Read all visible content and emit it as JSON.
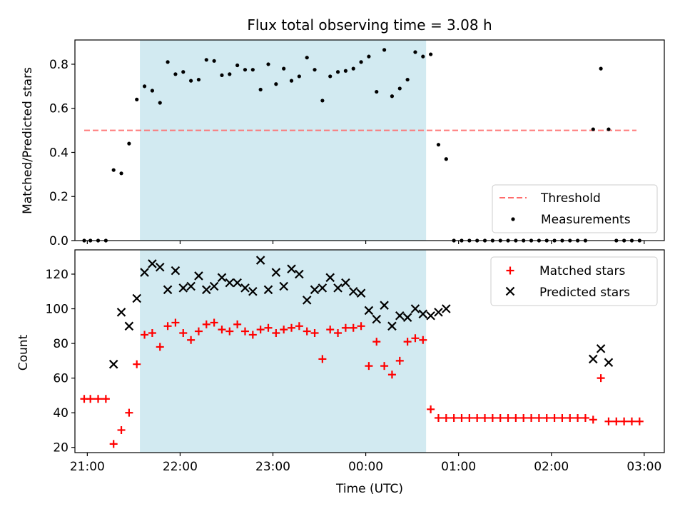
{
  "chart_data": [
    {
      "type": "scatter",
      "title": "Flux total observing time = 3.08 h",
      "xlabel": "",
      "ylabel": "Matched/Predicted stars",
      "xlim": [
        "20:52",
        "03:13"
      ],
      "ylim": [
        0,
        0.91
      ],
      "yticks": [
        0.0,
        0.2,
        0.4,
        0.6,
        0.8
      ],
      "shaded_interval": [
        "21:34",
        "00:39"
      ],
      "shaded_color": "#add8e6",
      "legend_position": "lower right",
      "series": [
        {
          "name": "Threshold",
          "style": "dashed-line",
          "color": "#ff6b6b",
          "x": [
            "20:58",
            "02:55"
          ],
          "y": [
            0.5,
            0.5
          ]
        },
        {
          "name": "Measurements",
          "style": "dot",
          "color": "#000000",
          "x": [
            "20:58",
            "21:02",
            "21:07",
            "21:12",
            "21:17",
            "21:22",
            "21:27",
            "21:32",
            "21:37",
            "21:42",
            "21:47",
            "21:52",
            "21:57",
            "22:02",
            "22:07",
            "22:12",
            "22:17",
            "22:22",
            "22:27",
            "22:32",
            "22:37",
            "22:42",
            "22:47",
            "22:52",
            "22:57",
            "23:02",
            "23:07",
            "23:12",
            "23:17",
            "23:22",
            "23:27",
            "23:32",
            "23:37",
            "23:42",
            "23:47",
            "23:52",
            "23:57",
            "00:02",
            "00:07",
            "00:12",
            "00:17",
            "00:22",
            "00:27",
            "00:32",
            "00:37",
            "00:42",
            "00:47",
            "00:52",
            "00:57",
            "01:02",
            "01:07",
            "01:12",
            "01:17",
            "01:22",
            "01:27",
            "01:32",
            "01:37",
            "01:42",
            "01:47",
            "01:52",
            "01:57",
            "02:02",
            "02:07",
            "02:12",
            "02:17",
            "02:22",
            "02:27",
            "02:32",
            "02:37",
            "02:42",
            "02:47",
            "02:52",
            "02:57"
          ],
          "y": [
            0.0,
            0.0,
            0.0,
            0.0,
            0.32,
            0.305,
            0.44,
            0.64,
            0.7,
            0.68,
            0.625,
            0.81,
            0.755,
            0.765,
            0.725,
            0.73,
            0.82,
            0.815,
            0.75,
            0.755,
            0.795,
            0.775,
            0.775,
            0.685,
            0.8,
            0.71,
            0.78,
            0.725,
            0.745,
            0.83,
            0.775,
            0.635,
            0.745,
            0.765,
            0.77,
            0.78,
            0.81,
            0.835,
            0.675,
            0.865,
            0.655,
            0.69,
            0.73,
            0.855,
            0.835,
            0.845,
            0.435,
            0.37,
            0.0,
            0.0,
            0.0,
            0.0,
            0.0,
            0.0,
            0.0,
            0.0,
            0.0,
            0.0,
            0.0,
            0.0,
            0.0,
            0.0,
            0.0,
            0.0,
            0.0,
            0.0,
            0.505,
            0.78,
            0.505,
            0.0,
            0.0,
            0.0,
            0.0
          ]
        }
      ]
    },
    {
      "type": "scatter",
      "title": "",
      "xlabel": "Time (UTC)",
      "ylabel": "Count",
      "xlim": [
        "20:52",
        "03:13"
      ],
      "ylim": [
        17,
        134
      ],
      "yticks": [
        20,
        40,
        60,
        80,
        100,
        120
      ],
      "xticks": [
        "21:00",
        "22:00",
        "23:00",
        "00:00",
        "01:00",
        "02:00",
        "03:00"
      ],
      "shaded_interval": [
        "21:34",
        "00:39"
      ],
      "shaded_color": "#add8e6",
      "legend_position": "upper right",
      "series": [
        {
          "name": "Matched stars",
          "marker": "plus",
          "color": "#ff0000",
          "x": [
            "20:58",
            "21:02",
            "21:07",
            "21:12",
            "21:17",
            "21:22",
            "21:27",
            "21:32",
            "21:37",
            "21:42",
            "21:47",
            "21:52",
            "21:57",
            "22:02",
            "22:07",
            "22:12",
            "22:17",
            "22:22",
            "22:27",
            "22:32",
            "22:37",
            "22:42",
            "22:47",
            "22:52",
            "22:57",
            "23:02",
            "23:07",
            "23:12",
            "23:17",
            "23:22",
            "23:27",
            "23:32",
            "23:37",
            "23:42",
            "23:47",
            "23:52",
            "23:57",
            "00:02",
            "00:07",
            "00:12",
            "00:17",
            "00:22",
            "00:27",
            "00:32",
            "00:37",
            "00:42",
            "00:47",
            "00:52",
            "00:57",
            "01:02",
            "01:07",
            "01:12",
            "01:17",
            "01:22",
            "01:27",
            "01:32",
            "01:37",
            "01:42",
            "01:47",
            "01:52",
            "01:57",
            "02:02",
            "02:07",
            "02:12",
            "02:17",
            "02:22",
            "02:27",
            "02:32",
            "02:37",
            "02:42",
            "02:47",
            "02:52",
            "02:57"
          ],
          "y": [
            48,
            48,
            48,
            48,
            22,
            30,
            40,
            68,
            85,
            86,
            78,
            90,
            92,
            86,
            82,
            87,
            91,
            92,
            88,
            87,
            91,
            87,
            85,
            88,
            89,
            86,
            88,
            89,
            90,
            87,
            86,
            71,
            88,
            86,
            89,
            89,
            90,
            67,
            81,
            67,
            62,
            70,
            81,
            83,
            82,
            42,
            37,
            37,
            37,
            37,
            37,
            37,
            37,
            37,
            37,
            37,
            37,
            37,
            37,
            37,
            37,
            37,
            37,
            37,
            37,
            37,
            36,
            60,
            35,
            35,
            35,
            35,
            35
          ]
        },
        {
          "name": "Predicted stars",
          "marker": "cross",
          "color": "#000000",
          "x": [
            "21:17",
            "21:22",
            "21:27",
            "21:32",
            "21:37",
            "21:42",
            "21:47",
            "21:52",
            "21:57",
            "22:02",
            "22:07",
            "22:12",
            "22:17",
            "22:22",
            "22:27",
            "22:32",
            "22:37",
            "22:42",
            "22:47",
            "22:52",
            "22:57",
            "23:02",
            "23:07",
            "23:12",
            "23:17",
            "23:22",
            "23:27",
            "23:32",
            "23:37",
            "23:42",
            "23:47",
            "23:52",
            "23:57",
            "00:02",
            "00:07",
            "00:12",
            "00:17",
            "00:22",
            "00:27",
            "00:32",
            "00:37",
            "00:42",
            "00:47",
            "00:52",
            "02:27",
            "02:32",
            "02:37"
          ],
          "y": [
            68,
            98,
            90,
            106,
            121,
            126,
            124,
            111,
            122,
            112,
            113,
            119,
            111,
            113,
            118,
            115,
            115,
            112,
            110,
            128,
            111,
            121,
            113,
            123,
            120,
            105,
            111,
            112,
            118,
            112,
            115,
            110,
            109,
            99,
            94,
            102,
            90,
            96,
            95,
            100,
            97,
            96,
            98,
            100,
            71,
            77,
            69
          ]
        }
      ]
    }
  ]
}
